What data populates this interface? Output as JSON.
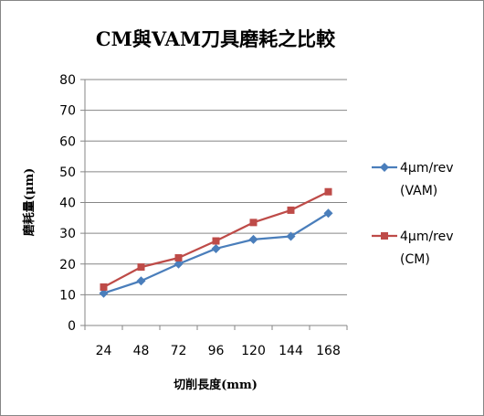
{
  "chart_data": {
    "type": "line",
    "title": "CM與VAM刀具磨耗之比較",
    "xlabel": "切削長度(mm)",
    "ylabel": "磨耗量(μm)",
    "categories": [
      "24",
      "48",
      "72",
      "96",
      "120",
      "144",
      "168"
    ],
    "ylim": [
      0,
      80
    ],
    "yticks": [
      "0",
      "10",
      "20",
      "30",
      "40",
      "50",
      "60",
      "70",
      "80"
    ],
    "grid": true,
    "legend_position": "right",
    "series": [
      {
        "name_line1": "4μm/rev",
        "name_line2": "(VAM)",
        "color": "#4A7EBB",
        "marker": "diamond",
        "values": [
          10.5,
          14.5,
          20.0,
          25.0,
          28.0,
          29.0,
          36.5
        ]
      },
      {
        "name_line1": "4μm/rev",
        "name_line2": "(CM)",
        "color": "#BE4B48",
        "marker": "square",
        "values": [
          12.5,
          19.0,
          22.0,
          27.5,
          33.5,
          37.5,
          43.5
        ]
      }
    ]
  }
}
